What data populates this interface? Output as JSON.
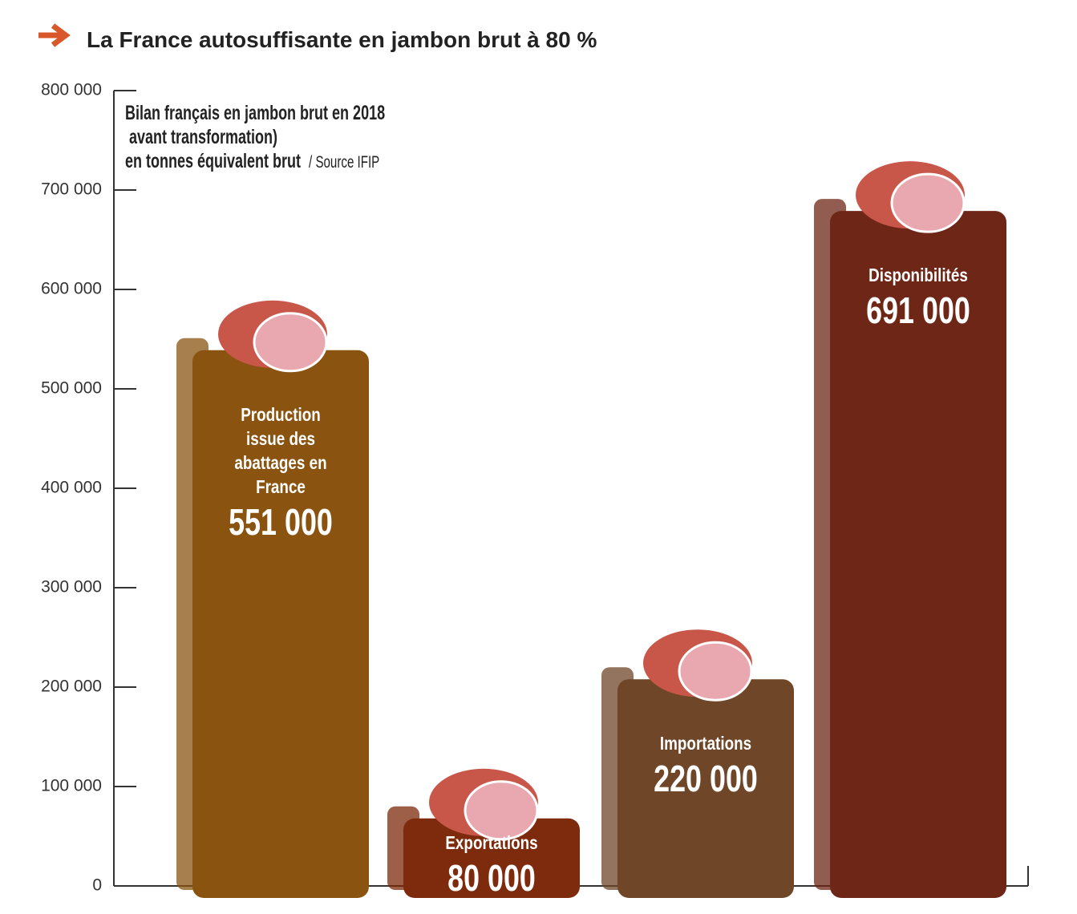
{
  "chart_data": {
    "type": "bar",
    "title": "La France autosuffisante en jambon brut à 80 %",
    "subtitle": [
      "Bilan français en jambon brut en 2018",
      " avant transformation)",
      "en tonnes équivalent brut"
    ],
    "source": "/ Source IFIP",
    "categories": [
      "Production issue des abattages en France",
      "Exportations",
      "Importations",
      "Disponibilités"
    ],
    "values": [
      551000,
      80000,
      220000,
      691000
    ],
    "value_labels": [
      "551 000",
      "80 000",
      "220 000",
      "691 000"
    ],
    "colors": [
      "#8a5410",
      "#7e2a0c",
      "#6f4628",
      "#6e2617"
    ],
    "ylim": [
      0,
      800000
    ],
    "yticks": [
      0,
      {
        "value": 100000,
        "label": "100 000"
      },
      {
        "value": 200000,
        "label": "200 000"
      },
      {
        "value": 300000,
        "label": "300 000"
      },
      {
        "value": 400000,
        "label": "400 000"
      },
      {
        "value": 500000,
        "label": "500 000"
      },
      {
        "value": 600000,
        "label": "600 000"
      },
      {
        "value": 700000,
        "label": "700 000"
      },
      {
        "value": 800000,
        "label": "800 000"
      }
    ],
    "grid": false
  }
}
